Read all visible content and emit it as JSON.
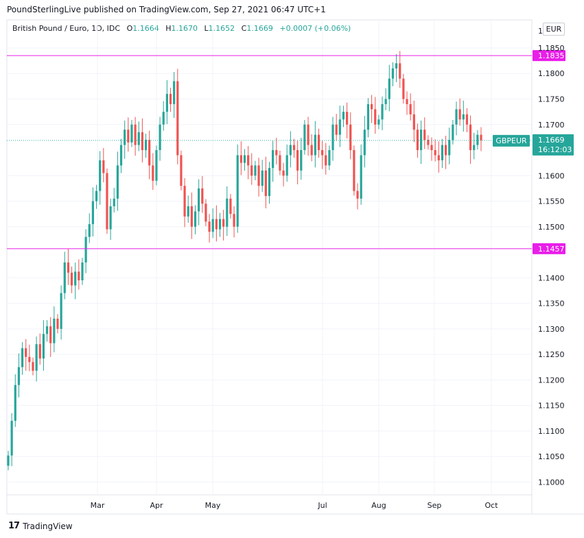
{
  "header": {
    "published": "PoundSterlingLive published on TradingView.com, Sep 27, 2021 06:47 UTC+1"
  },
  "legend": {
    "title": "British Pound / Euro, 1D, IDC",
    "open_label": "O",
    "open": "1.1664",
    "high_label": "H",
    "high": "1.1670",
    "low_label": "L",
    "low": "1.1652",
    "close_label": "C",
    "close": "1.1669",
    "change": "+0.0007 (+0.06%)"
  },
  "currency": "EUR",
  "price_tag": {
    "symbol": "GBPEUR",
    "price": "1.1669",
    "countdown": "16:12:03"
  },
  "levels": [
    {
      "label": "1.1835",
      "value": 1.1835
    },
    {
      "label": "1.1457",
      "value": 1.1457
    }
  ],
  "footer": {
    "logo": "17",
    "brand": "TradingView"
  },
  "colors": {
    "up": "#26a69a",
    "down": "#ef5350",
    "level": "#e91ee9",
    "grid": "#f0f3fa"
  },
  "chart_data": {
    "type": "candlestick",
    "symbol": "GBPEUR",
    "interval": "1D",
    "y_axis": {
      "ticks": [
        "1.1850",
        "1.1800",
        "1.1750",
        "1.1700",
        "1.1600",
        "1.1550",
        "1.1500",
        "1.1400",
        "1.1350",
        "1.1300",
        "1.1250",
        "1.1200",
        "1.1150",
        "1.1100",
        "1.1050",
        "1.1000"
      ],
      "top_label": "1.",
      "range": [
        1.0975,
        1.1905
      ]
    },
    "x_axis": {
      "ticks": [
        "Mar",
        "Apr",
        "May",
        "Jul",
        "Aug",
        "Sep",
        "Oct"
      ]
    },
    "grid": true,
    "horizontal_levels": [
      1.1835,
      1.1457
    ],
    "last_price": 1.1669,
    "points": [
      {
        "t": 0,
        "c": 1.1052
      },
      {
        "t": 1,
        "c": 1.112
      },
      {
        "t": 2,
        "c": 1.119
      },
      {
        "t": 3,
        "c": 1.1225
      },
      {
        "t": 4,
        "c": 1.1262
      },
      {
        "t": 5,
        "c": 1.1245
      },
      {
        "t": 6,
        "c": 1.1235
      },
      {
        "t": 7,
        "c": 1.1218
      },
      {
        "t": 8,
        "c": 1.127
      },
      {
        "t": 9,
        "c": 1.1242
      },
      {
        "t": 10,
        "c": 1.129
      },
      {
        "t": 11,
        "c": 1.1305
      },
      {
        "t": 12,
        "c": 1.1272
      },
      {
        "t": 13,
        "c": 1.132
      },
      {
        "t": 14,
        "c": 1.13
      },
      {
        "t": 15,
        "c": 1.137
      },
      {
        "t": 16,
        "c": 1.143
      },
      {
        "t": 17,
        "c": 1.141
      },
      {
        "t": 18,
        "c": 1.1385
      },
      {
        "t": 19,
        "c": 1.1412
      },
      {
        "t": 20,
        "c": 1.1395
      },
      {
        "t": 21,
        "c": 1.143
      },
      {
        "t": 22,
        "c": 1.148
      },
      {
        "t": 23,
        "c": 1.1505
      },
      {
        "t": 24,
        "c": 1.155
      },
      {
        "t": 25,
        "c": 1.157
      },
      {
        "t": 26,
        "c": 1.163
      },
      {
        "t": 27,
        "c": 1.1605
      },
      {
        "t": 28,
        "c": 1.1495
      },
      {
        "t": 29,
        "c": 1.154
      },
      {
        "t": 30,
        "c": 1.1555
      },
      {
        "t": 31,
        "c": 1.162
      },
      {
        "t": 32,
        "c": 1.166
      },
      {
        "t": 33,
        "c": 1.169
      },
      {
        "t": 34,
        "c": 1.1665
      },
      {
        "t": 35,
        "c": 1.17
      },
      {
        "t": 36,
        "c": 1.166
      },
      {
        "t": 37,
        "c": 1.1685
      },
      {
        "t": 38,
        "c": 1.165
      },
      {
        "t": 39,
        "c": 1.167
      },
      {
        "t": 40,
        "c": 1.162
      },
      {
        "t": 41,
        "c": 1.159
      },
      {
        "t": 42,
        "c": 1.165
      },
      {
        "t": 43,
        "c": 1.17
      },
      {
        "t": 44,
        "c": 1.1725
      },
      {
        "t": 45,
        "c": 1.176
      },
      {
        "t": 46,
        "c": 1.174
      },
      {
        "t": 47,
        "c": 1.1785
      },
      {
        "t": 48,
        "c": 1.164
      },
      {
        "t": 49,
        "c": 1.158
      },
      {
        "t": 50,
        "c": 1.152
      },
      {
        "t": 51,
        "c": 1.154
      },
      {
        "t": 52,
        "c": 1.15
      },
      {
        "t": 53,
        "c": 1.153
      },
      {
        "t": 54,
        "c": 1.1575
      },
      {
        "t": 55,
        "c": 1.1545
      },
      {
        "t": 56,
        "c": 1.151
      },
      {
        "t": 57,
        "c": 1.149
      },
      {
        "t": 58,
        "c": 1.1515
      },
      {
        "t": 59,
        "c": 1.1495
      },
      {
        "t": 60,
        "c": 1.1515
      },
      {
        "t": 61,
        "c": 1.15
      },
      {
        "t": 62,
        "c": 1.1555
      },
      {
        "t": 63,
        "c": 1.1525
      },
      {
        "t": 64,
        "c": 1.15
      },
      {
        "t": 65,
        "c": 1.164
      },
      {
        "t": 66,
        "c": 1.1625
      },
      {
        "t": 67,
        "c": 1.164
      },
      {
        "t": 68,
        "c": 1.162
      },
      {
        "t": 69,
        "c": 1.16
      },
      {
        "t": 70,
        "c": 1.162
      },
      {
        "t": 71,
        "c": 1.158
      },
      {
        "t": 72,
        "c": 1.161
      },
      {
        "t": 73,
        "c": 1.156
      },
      {
        "t": 74,
        "c": 1.1615
      },
      {
        "t": 75,
        "c": 1.165
      },
      {
        "t": 76,
        "c": 1.164
      },
      {
        "t": 77,
        "c": 1.161
      },
      {
        "t": 78,
        "c": 1.16
      },
      {
        "t": 79,
        "c": 1.164
      },
      {
        "t": 80,
        "c": 1.166
      },
      {
        "t": 81,
        "c": 1.165
      },
      {
        "t": 82,
        "c": 1.161
      },
      {
        "t": 83,
        "c": 1.165
      },
      {
        "t": 84,
        "c": 1.17
      },
      {
        "t": 85,
        "c": 1.166
      },
      {
        "t": 86,
        "c": 1.164
      },
      {
        "t": 87,
        "c": 1.168
      },
      {
        "t": 88,
        "c": 1.165
      },
      {
        "t": 89,
        "c": 1.164
      },
      {
        "t": 90,
        "c": 1.162
      },
      {
        "t": 91,
        "c": 1.165
      },
      {
        "t": 92,
        "c": 1.17
      },
      {
        "t": 93,
        "c": 1.168
      },
      {
        "t": 94,
        "c": 1.171
      },
      {
        "t": 95,
        "c": 1.1725
      },
      {
        "t": 96,
        "c": 1.17
      },
      {
        "t": 97,
        "c": 1.165
      },
      {
        "t": 98,
        "c": 1.157
      },
      {
        "t": 99,
        "c": 1.1555
      },
      {
        "t": 100,
        "c": 1.164
      },
      {
        "t": 101,
        "c": 1.169
      },
      {
        "t": 102,
        "c": 1.174
      },
      {
        "t": 103,
        "c": 1.173
      },
      {
        "t": 104,
        "c": 1.17
      },
      {
        "t": 105,
        "c": 1.171
      },
      {
        "t": 106,
        "c": 1.174
      },
      {
        "t": 107,
        "c": 1.175
      },
      {
        "t": 108,
        "c": 1.179
      },
      {
        "t": 109,
        "c": 1.181
      },
      {
        "t": 110,
        "c": 1.182
      },
      {
        "t": 111,
        "c": 1.179
      },
      {
        "t": 112,
        "c": 1.175
      },
      {
        "t": 113,
        "c": 1.174
      },
      {
        "t": 114,
        "c": 1.172
      },
      {
        "t": 115,
        "c": 1.169
      },
      {
        "t": 116,
        "c": 1.165
      },
      {
        "t": 117,
        "c": 1.169
      },
      {
        "t": 118,
        "c": 1.167
      },
      {
        "t": 119,
        "c": 1.166
      },
      {
        "t": 120,
        "c": 1.165
      },
      {
        "t": 121,
        "c": 1.164
      },
      {
        "t": 122,
        "c": 1.163
      },
      {
        "t": 123,
        "c": 1.166
      },
      {
        "t": 124,
        "c": 1.164
      },
      {
        "t": 125,
        "c": 1.167
      },
      {
        "t": 126,
        "c": 1.17
      },
      {
        "t": 127,
        "c": 1.173
      },
      {
        "t": 128,
        "c": 1.171
      },
      {
        "t": 129,
        "c": 1.172
      },
      {
        "t": 130,
        "c": 1.17
      },
      {
        "t": 131,
        "c": 1.165
      },
      {
        "t": 132,
        "c": 1.166
      },
      {
        "t": 133,
        "c": 1.168
      },
      {
        "t": 134,
        "c": 1.1669
      }
    ]
  }
}
